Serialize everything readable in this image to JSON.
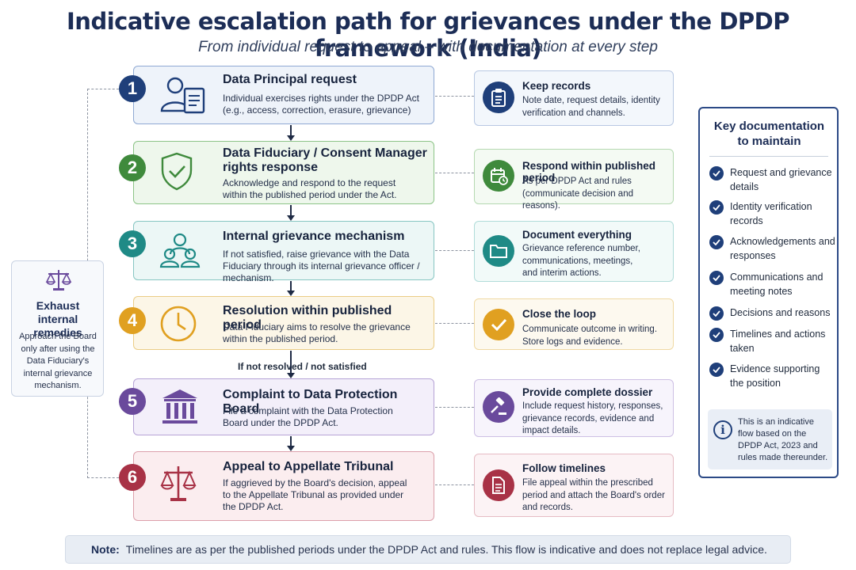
{
  "header": {
    "title": "Indicative escalation path for grievances under the DPDP framework (India)",
    "subtitle": "From individual request to appeal – with documentation at every step"
  },
  "steps": [
    {
      "number": "1",
      "title": "Data Principal request",
      "description": "Individual exercises rights under the DPDP Act (e.g., access, correction, erasure, grievance)",
      "color": "#1f3f7a",
      "icon": "user-document-icon"
    },
    {
      "number": "2",
      "title": "Data Fiduciary / Consent Manager rights response",
      "description": "Acknowledge and respond to the request within the published period under the Act.",
      "color": "#3f8a3c",
      "icon": "shield-check-icon"
    },
    {
      "number": "3",
      "title": "Internal grievance mechanism",
      "description": "If not satisfied, raise grievance with the Data Fiduciary through its internal grievance officer / mechanism.",
      "color": "#1f8a86",
      "icon": "people-group-icon"
    },
    {
      "number": "4",
      "title": "Resolution within published period",
      "description": "Data Fiduciary aims to resolve the grievance within the published period.",
      "color": "#e0a021",
      "icon": "clock-icon"
    },
    {
      "number": "5",
      "title": "Complaint to Data Protection Board",
      "description": "File a complaint with the Data Protection Board under the DPDP Act.",
      "color": "#6a4a9c",
      "icon": "institution-building-icon"
    },
    {
      "number": "6",
      "title": "Appeal to Appellate Tribunal",
      "description": "If aggrieved by the Board's decision, appeal to the Appellate Tribunal as provided under the DPDP Act.",
      "color": "#a83246",
      "icon": "scales-icon"
    }
  ],
  "flow_label": "If not resolved / not satisfied",
  "cards": [
    {
      "title": "Keep records",
      "description": "Note date, request details, identity verification and channels.",
      "color": "#1f3f7a",
      "icon": "clipboard-icon"
    },
    {
      "title": "Respond within published period",
      "description": "As per DPDP Act and rules (communicate decision and reasons).",
      "color": "#3f8a3c",
      "icon": "calendar-icon"
    },
    {
      "title": "Document everything",
      "description": "Grievance reference number, communications, meetings, and interim actions.",
      "color": "#1f8a86",
      "icon": "folder-icon"
    },
    {
      "title": "Close the loop",
      "description": "Communicate outcome in writing. Store logs and evidence.",
      "color": "#e0a021",
      "icon": "checkmark-icon"
    },
    {
      "title": "Provide complete dossier",
      "description": "Include request history, responses, grievance records, evidence and impact details.",
      "color": "#6a4a9c",
      "icon": "gavel-icon"
    },
    {
      "title": "Follow timelines",
      "description": "File appeal within the prescribed period and attach the Board's order and records.",
      "color": "#a83246",
      "icon": "document-icon"
    }
  ],
  "left_panel": {
    "title": "Exhaust internal remedies",
    "description": "Approach the Board only after using the Data Fiduciary's internal grievance mechanism.",
    "icon": "scales-icon"
  },
  "right_panel": {
    "title": "Key documentation to maintain",
    "items": [
      "Request and grievance details",
      "Identity verification records",
      "Acknowledgements and responses",
      "Communications and meeting notes",
      "Decisions and reasons",
      "Timelines and actions taken",
      "Evidence supporting the position"
    ],
    "info": "This is an indicative flow based on the DPDP Act, 2023 and rules made thereunder."
  },
  "note": {
    "label": "Note:",
    "text": "Timelines are as per the published periods under the DPDP Act and rules. This flow is indicative and does not replace legal advice."
  }
}
